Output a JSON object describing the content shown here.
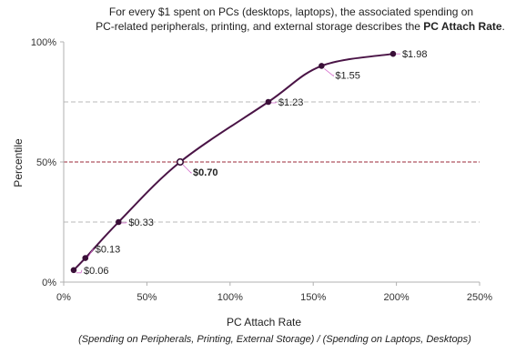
{
  "chart_data": {
    "type": "line",
    "title_line1": "For every $1 spent on PCs (desktops, laptops), the associated spending on",
    "title_line2_prefix": "PC-related peripherals, printing, and external storage describes the ",
    "title_line2_bold": "PC Attach Rate",
    "title_line2_suffix": ".",
    "xlabel": "PC Attach Rate",
    "xlabel_sub": "(Spending on Peripherals, Printing, External Storage) / (Spending on Laptops, Desktops)",
    "ylabel": "Percentile",
    "xlim": [
      0,
      250
    ],
    "ylim": [
      0,
      100
    ],
    "x_ticks": [
      0,
      50,
      100,
      150,
      200,
      250
    ],
    "x_tick_labels": [
      "0%",
      "50%",
      "100%",
      "150%",
      "200%",
      "250%"
    ],
    "y_ticks": [
      0,
      50,
      100
    ],
    "y_tick_labels": [
      "0%",
      "50%",
      "100%"
    ],
    "reference_lines": [
      {
        "y": 25,
        "style": "dashed-gray"
      },
      {
        "y": 50,
        "style": "dashed-red"
      },
      {
        "y": 75,
        "style": "dashed-gray"
      }
    ],
    "points": [
      {
        "x": 6,
        "y": 5,
        "label": "$0.06",
        "bold": false,
        "marker": "filled"
      },
      {
        "x": 13,
        "y": 10,
        "label": "$0.13",
        "bold": false,
        "marker": "filled"
      },
      {
        "x": 33,
        "y": 25,
        "label": "$0.33",
        "bold": false,
        "marker": "filled"
      },
      {
        "x": 70,
        "y": 50,
        "label": "$0.70",
        "bold": true,
        "marker": "open"
      },
      {
        "x": 123,
        "y": 75,
        "label": "$1.23",
        "bold": false,
        "marker": "filled"
      },
      {
        "x": 155,
        "y": 90,
        "label": "$1.55",
        "bold": false,
        "marker": "filled"
      },
      {
        "x": 198,
        "y": 95,
        "label": "$1.98",
        "bold": false,
        "marker": "filled"
      }
    ],
    "colors": {
      "line": "#4a1446",
      "marker": "#3a0f38",
      "ref_red": "#9b2a3a",
      "ref_gray": "#b8b8b8",
      "axis": "#b0b0b0",
      "leader": "#d46acb"
    }
  }
}
